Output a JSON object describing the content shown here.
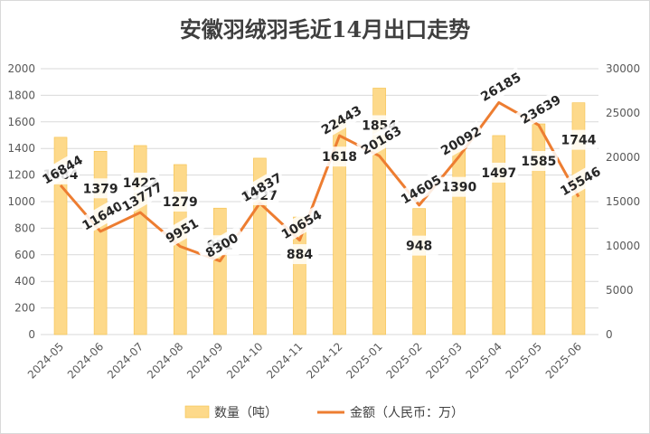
{
  "chart_data": {
    "type": "bar+line",
    "title": "安徽羽绒羽毛近14月出口走势",
    "categories": [
      "2024-05",
      "2024-06",
      "2024-07",
      "2024-08",
      "2024-09",
      "2024-10",
      "2024-11",
      "2024-12",
      "2025-01",
      "2025-02",
      "2025-03",
      "2025-04",
      "2025-05",
      "2025-06"
    ],
    "series": [
      {
        "name": "数量（吨）",
        "type": "bar",
        "axis": "left",
        "color": "#fdd98a",
        "values": [
          1484,
          1379,
          1422,
          1279,
          951,
          1327,
          884,
          1618,
          1854,
          948,
          1390,
          1497,
          1585,
          1744
        ]
      },
      {
        "name": "金额（人民币：万）",
        "type": "line",
        "axis": "right",
        "color": "#ed7d31",
        "values": [
          16844,
          11640,
          13777,
          9951,
          8300,
          14837,
          10654,
          22443,
          20163,
          14605,
          20092,
          26185,
          23639,
          15546
        ]
      }
    ],
    "y_left": {
      "min": 0,
      "max": 2000,
      "step": 200
    },
    "y_right": {
      "min": 0,
      "max": 30000,
      "step": 5000
    },
    "grid": true,
    "legend": "bottom"
  }
}
